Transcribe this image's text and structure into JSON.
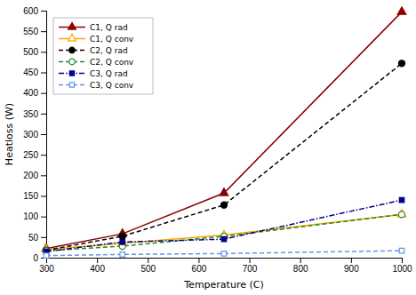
{
  "chart_data": {
    "type": "line",
    "xlabel": "Temperature (C)",
    "ylabel": "Heatloss (W)",
    "x": [
      300,
      450,
      650,
      1000
    ],
    "xlim": [
      300,
      1000
    ],
    "ylim": [
      0,
      600
    ],
    "xticks": [
      300,
      400,
      500,
      600,
      700,
      800,
      900,
      1000
    ],
    "yticks": [
      0,
      50,
      100,
      150,
      200,
      250,
      300,
      350,
      400,
      450,
      500,
      550,
      600
    ],
    "grid": false,
    "legend": "upper left",
    "series": [
      {
        "name": "C1, Q rad",
        "color": "#8B0000",
        "marker": "triangle",
        "line_style": "solid",
        "values": [
          22,
          58,
          157,
          597
        ]
      },
      {
        "name": "C1, Q conv",
        "color": "#FFA500",
        "marker": "triangle-open",
        "line_style": "solid",
        "values": [
          20,
          35,
          55,
          105
        ]
      },
      {
        "name": "C2, Q rad",
        "color": "#000000",
        "marker": "circle",
        "line_style": "dashed",
        "values": [
          18,
          52,
          128,
          472
        ]
      },
      {
        "name": "C2, Q conv",
        "color": "#228B22",
        "marker": "circle-open",
        "line_style": "dashed",
        "values": [
          17,
          28,
          52,
          105
        ]
      },
      {
        "name": "C3, Q rad",
        "color": "#00008B",
        "marker": "square",
        "line_style": "dashdot",
        "values": [
          15,
          38,
          45,
          140
        ]
      },
      {
        "name": "C3, Q conv",
        "color": "#6495ED",
        "marker": "square-open",
        "line_style": "dashed",
        "values": [
          5,
          8,
          10,
          17
        ]
      }
    ]
  }
}
